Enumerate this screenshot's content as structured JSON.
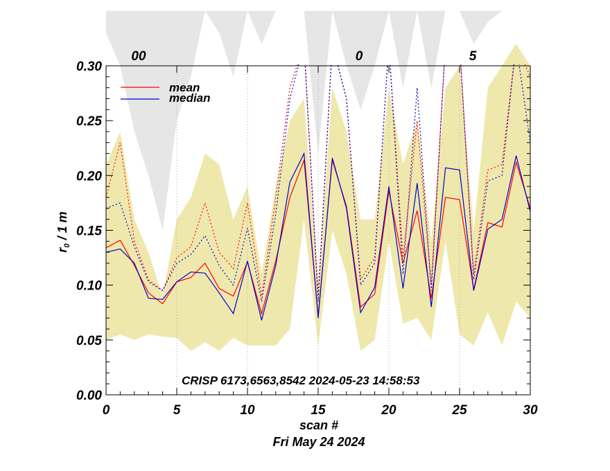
{
  "chart_data": {
    "type": "line",
    "ylabel": "r",
    "ylabel_sub": "0",
    "ylabel_unit": " / 1 m",
    "xlabel": "scan #",
    "date": "Fri May 24 2024",
    "annotation": "CRISP 6173,6563,8542 2024-05-23 14:58:53",
    "xlim": [
      0,
      30
    ],
    "ylim": [
      0,
      0.3
    ],
    "x_ticks": [
      "0",
      "5",
      "10",
      "15",
      "20",
      "25",
      "30"
    ],
    "y_ticks": [
      "0.00",
      "0.05",
      "0.10",
      "0.15",
      "0.20",
      "0.25",
      "0.30"
    ],
    "top_axis_labels": [
      "00",
      "0",
      "5"
    ],
    "legend": [
      {
        "name": "mean",
        "color": "#ff0000"
      },
      {
        "name": "median",
        "color": "#0000cc"
      }
    ],
    "x": [
      0,
      1,
      2,
      3,
      4,
      5,
      6,
      7,
      8,
      9,
      10,
      11,
      12,
      13,
      14,
      15,
      16,
      17,
      18,
      19,
      20,
      21,
      22,
      23,
      24,
      25,
      26,
      27,
      28,
      29,
      30
    ],
    "series": [
      {
        "name": "mean",
        "color": "#ff0000",
        "style": "solid",
        "values": [
          0.134,
          0.141,
          0.118,
          0.093,
          0.083,
          0.103,
          0.107,
          0.12,
          0.097,
          0.09,
          0.121,
          0.074,
          0.122,
          0.18,
          0.214,
          0.072,
          0.214,
          0.172,
          0.08,
          0.092,
          0.186,
          0.12,
          0.168,
          0.088,
          0.18,
          0.178,
          0.096,
          0.157,
          0.153,
          0.212,
          0.17
        ]
      },
      {
        "name": "median",
        "color": "#0000cc",
        "style": "solid",
        "values": [
          0.13,
          0.133,
          0.12,
          0.088,
          0.087,
          0.103,
          0.112,
          0.111,
          0.093,
          0.074,
          0.122,
          0.068,
          0.118,
          0.194,
          0.22,
          0.07,
          0.216,
          0.17,
          0.075,
          0.098,
          0.19,
          0.097,
          0.193,
          0.08,
          0.207,
          0.205,
          0.095,
          0.151,
          0.16,
          0.218,
          0.167
        ]
      },
      {
        "name": "mean-upper",
        "color": "#ff0000",
        "style": "dotted",
        "values": [
          0.18,
          0.23,
          0.14,
          0.105,
          0.095,
          0.125,
          0.135,
          0.175,
          0.13,
          0.115,
          0.175,
          0.09,
          0.18,
          0.28,
          0.32,
          0.09,
          0.32,
          0.27,
          0.105,
          0.125,
          0.32,
          0.125,
          0.25,
          0.1,
          0.32,
          0.32,
          0.11,
          0.205,
          0.21,
          0.32,
          0.29
        ]
      },
      {
        "name": "median-upper",
        "color": "#0000cc",
        "style": "dotted",
        "values": [
          0.17,
          0.175,
          0.135,
          0.103,
          0.095,
          0.12,
          0.128,
          0.145,
          0.118,
          0.1,
          0.152,
          0.085,
          0.165,
          0.27,
          0.32,
          0.085,
          0.32,
          0.27,
          0.1,
          0.12,
          0.32,
          0.11,
          0.28,
          0.095,
          0.32,
          0.32,
          0.105,
          0.195,
          0.2,
          0.32,
          0.23
        ]
      }
    ],
    "band_upper": [
      0.21,
      0.24,
      0.16,
      0.13,
      0.09,
      0.16,
      0.18,
      0.22,
      0.21,
      0.16,
      0.19,
      0.11,
      0.19,
      0.25,
      0.27,
      0.1,
      0.28,
      0.24,
      0.16,
      0.16,
      0.28,
      0.21,
      0.25,
      0.14,
      0.28,
      0.3,
      0.15,
      0.28,
      0.3,
      0.32,
      0.3
    ],
    "band_lower": [
      0.05,
      0.055,
      0.05,
      0.055,
      0.053,
      0.052,
      0.04,
      0.048,
      0.04,
      0.052,
      0.045,
      0.045,
      0.045,
      0.06,
      0.16,
      0.045,
      0.15,
      0.11,
      0.04,
      0.05,
      0.14,
      0.065,
      0.07,
      0.05,
      0.14,
      0.055,
      0.045,
      0.075,
      0.045,
      0.085,
      0.07
    ],
    "gray_upper": [
      0.35,
      0.35,
      0.35,
      0.35,
      0.35,
      0.35,
      0.35,
      0.35,
      0.35,
      0.35,
      0.35,
      0.35,
      0.35,
      0.35,
      0.35,
      0.35,
      0.35,
      0.35,
      0.35,
      0.35,
      0.35,
      0.35,
      0.35,
      0.35,
      0.35,
      0.35,
      0.35,
      0.35,
      0.35,
      0.35,
      0.35
    ],
    "gray_lower": [
      0.33,
      0.3,
      0.24,
      0.2,
      0.15,
      0.25,
      0.29,
      0.35,
      0.33,
      0.29,
      0.35,
      0.32,
      0.35,
      0.35,
      0.35,
      0.22,
      0.35,
      0.3,
      0.26,
      0.3,
      0.35,
      0.28,
      0.35,
      0.28,
      0.35,
      0.35,
      0.32,
      0.34,
      0.35,
      0.35,
      0.35
    ]
  }
}
